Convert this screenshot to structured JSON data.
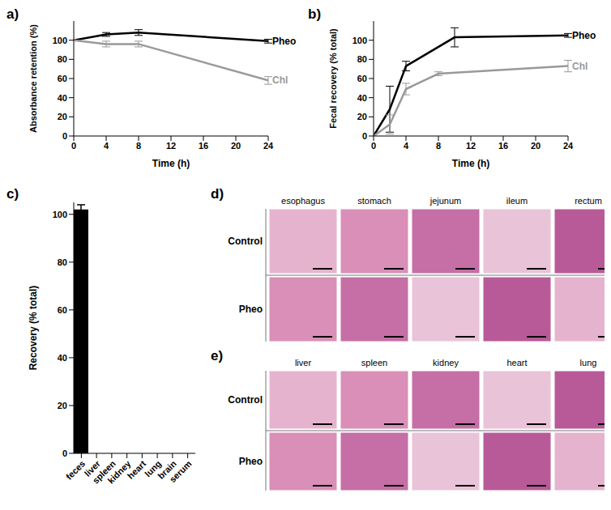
{
  "chart_data": [
    {
      "type": "line",
      "title": "a)",
      "x_label": "Time (h)",
      "y_label": "Absorbance retention (%)",
      "xlim": [
        0,
        24
      ],
      "xticks": [
        0,
        4,
        8,
        12,
        16,
        20,
        24
      ],
      "ylim": [
        0,
        120
      ],
      "yticks": [
        0,
        20,
        40,
        60,
        80,
        100
      ],
      "series": [
        {
          "name": "Pheo",
          "color": "#000000",
          "x": [
            0,
            4,
            8,
            24
          ],
          "values": [
            100,
            106,
            108,
            99
          ],
          "errors": [
            0,
            2,
            3,
            2
          ]
        },
        {
          "name": "Chl",
          "color": "#999999",
          "x": [
            0,
            4,
            8,
            24
          ],
          "values": [
            100,
            96,
            96,
            58
          ],
          "errors": [
            0,
            3,
            3,
            4
          ]
        }
      ]
    },
    {
      "type": "line",
      "title": "b)",
      "x_label": "Time (h)",
      "y_label": "Fecal recovery (% total)",
      "xlim": [
        0,
        24
      ],
      "xticks": [
        0,
        4,
        8,
        12,
        16,
        20,
        24
      ],
      "ylim": [
        0,
        120
      ],
      "yticks": [
        0,
        20,
        40,
        60,
        80,
        100
      ],
      "series": [
        {
          "name": "Pheo",
          "color": "#000000",
          "x": [
            0,
            2,
            4,
            10,
            24
          ],
          "values": [
            0,
            28,
            73,
            103,
            105
          ],
          "errors": [
            0,
            24,
            5,
            10,
            2
          ]
        },
        {
          "name": "Chl",
          "color": "#999999",
          "x": [
            0,
            2,
            4,
            8,
            24
          ],
          "values": [
            0,
            12,
            49,
            65,
            73
          ],
          "errors": [
            0,
            10,
            6,
            2,
            6
          ]
        }
      ]
    },
    {
      "type": "bar",
      "title": "c)",
      "y_label": "Recovery (% total)",
      "categories": [
        "feces",
        "liver",
        "spleen",
        "kidney",
        "heart",
        "lung",
        "brain",
        "serum"
      ],
      "values": [
        102,
        0,
        0,
        0,
        0,
        0,
        0,
        0
      ],
      "errors": [
        2,
        0,
        0,
        0,
        0,
        0,
        0,
        0
      ],
      "color": "#000000",
      "ylim": [
        0,
        105
      ],
      "yticks": [
        0,
        20,
        40,
        60,
        80,
        100
      ]
    }
  ],
  "histology": [
    {
      "title": "d)",
      "columns": [
        "esophagus",
        "stomach",
        "jejunum",
        "ileum",
        "rectum"
      ],
      "rows": [
        "Control",
        "Pheo"
      ]
    },
    {
      "title": "e)",
      "columns": [
        "liver",
        "spleen",
        "kidney",
        "heart",
        "lung"
      ],
      "rows": [
        "Control",
        "Pheo"
      ]
    }
  ]
}
